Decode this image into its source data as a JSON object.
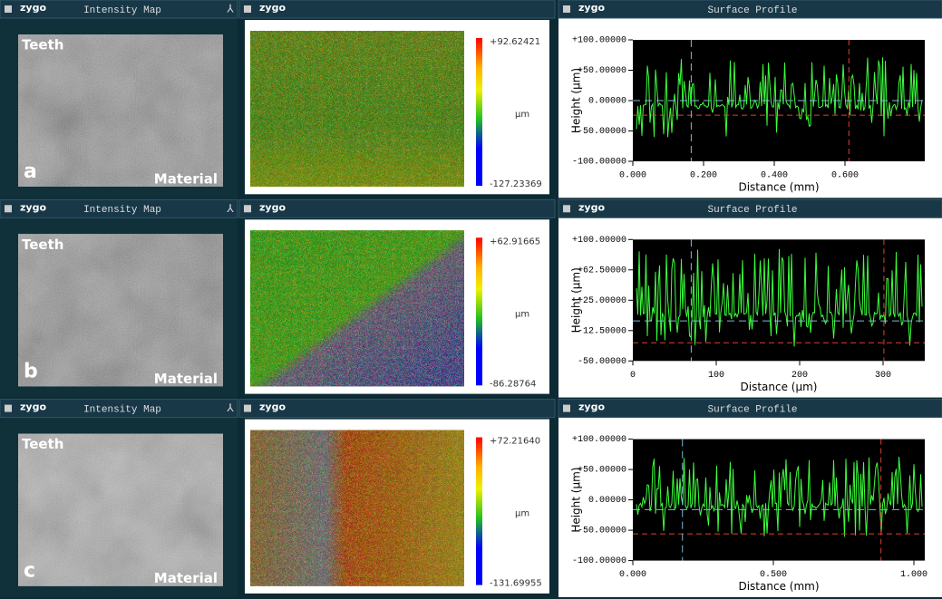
{
  "rows": [
    {
      "label": "a",
      "intensity": {
        "logo": "zygo",
        "title": "Intensity Map",
        "top_label": "Teeth",
        "bottom_label": "Material"
      },
      "map": {
        "logo": "zygo",
        "max": "+92.62421",
        "unit": "µm",
        "min": "-127.23369"
      },
      "profile": {
        "logo": "zygo",
        "title": "Surface Profile",
        "y_label": "Height (µm)",
        "x_label": "Distance (mm)",
        "yticks": [
          "+100.00000",
          "+50.00000",
          "0.00000",
          "-50.00000",
          "-100.00000"
        ],
        "xticks": [
          "0.000",
          "0.200",
          "0.400",
          "0.600"
        ]
      }
    },
    {
      "label": "b",
      "intensity": {
        "logo": "zygo",
        "title": "Intensity Map",
        "top_label": "Teeth",
        "bottom_label": "Material"
      },
      "map": {
        "logo": "zygo",
        "max": "+62.91665",
        "unit": "µm",
        "min": "-86.28764"
      },
      "profile": {
        "logo": "zygo",
        "title": "Surface Profile",
        "y_label": "Height (µm)",
        "x_label": "Distance (µm)",
        "yticks": [
          "+100.00000",
          "+62.50000",
          "+25.00000",
          "-12.50000",
          "-50.00000"
        ],
        "xticks": [
          "0",
          "100",
          "200",
          "300"
        ]
      }
    },
    {
      "label": "c",
      "intensity": {
        "logo": "zygo",
        "title": "Intensity Map",
        "top_label": "Teeth",
        "bottom_label": "Material"
      },
      "map": {
        "logo": "zygo",
        "max": "+72.21640",
        "unit": "µm",
        "min": "-131.69955"
      },
      "profile": {
        "logo": "zygo",
        "title": "Surface Profile",
        "y_label": "Height (µm)",
        "x_label": "Distance (mm)",
        "yticks": [
          "+100.00000",
          "+50.00000",
          "0.00000",
          "-50.00000",
          "-100.00000"
        ],
        "xticks": [
          "0.000",
          "0.500",
          "1.000"
        ]
      }
    }
  ]
}
